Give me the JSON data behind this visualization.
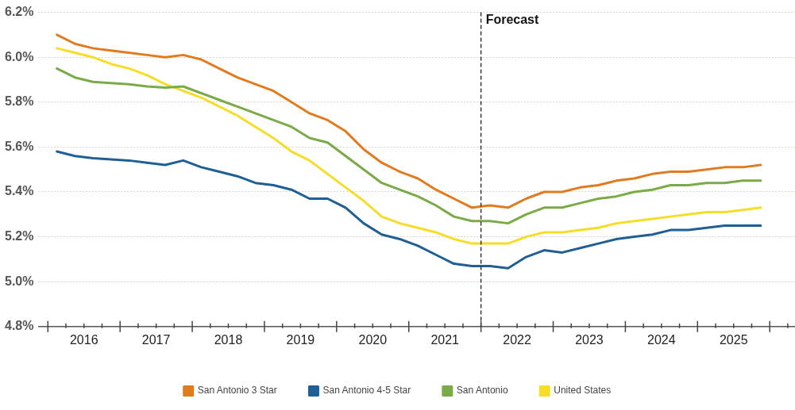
{
  "chart_data": {
    "type": "line",
    "x": [
      2016.125,
      2016.375,
      2016.625,
      2016.875,
      2017.125,
      2017.375,
      2017.625,
      2017.875,
      2018.125,
      2018.375,
      2018.625,
      2018.875,
      2019.125,
      2019.375,
      2019.625,
      2019.875,
      2020.125,
      2020.375,
      2020.625,
      2020.875,
      2021.125,
      2021.375,
      2021.625,
      2021.875,
      2022.125,
      2022.375,
      2022.625,
      2022.875,
      2023.125,
      2023.375,
      2023.625,
      2023.875,
      2024.125,
      2024.375,
      2024.625,
      2024.875,
      2025.125,
      2025.375,
      2025.625,
      2025.875
    ],
    "series": [
      {
        "name": "San Antonio 3 Star",
        "color": "#e07b20",
        "values": [
          6.1,
          6.06,
          6.04,
          6.03,
          6.02,
          6.01,
          6.0,
          6.01,
          5.99,
          5.95,
          5.91,
          5.88,
          5.85,
          5.8,
          5.75,
          5.72,
          5.67,
          5.59,
          5.53,
          5.49,
          5.46,
          5.41,
          5.37,
          5.33,
          5.34,
          5.33,
          5.37,
          5.4,
          5.4,
          5.42,
          5.43,
          5.45,
          5.46,
          5.48,
          5.49,
          5.49,
          5.5,
          5.51,
          5.51,
          5.52
        ]
      },
      {
        "name": "San Antonio 4-5 Star",
        "color": "#1f5f96",
        "values": [
          5.58,
          5.56,
          5.55,
          5.545,
          5.54,
          5.53,
          5.52,
          5.54,
          5.51,
          5.49,
          5.47,
          5.44,
          5.43,
          5.41,
          5.37,
          5.37,
          5.33,
          5.26,
          5.21,
          5.19,
          5.16,
          5.12,
          5.08,
          5.07,
          5.07,
          5.06,
          5.11,
          5.14,
          5.13,
          5.15,
          5.17,
          5.19,
          5.2,
          5.21,
          5.23,
          5.23,
          5.24,
          5.25,
          5.25,
          5.25
        ]
      },
      {
        "name": "San Antonio",
        "color": "#7aab48",
        "values": [
          5.95,
          5.91,
          5.89,
          5.885,
          5.88,
          5.87,
          5.865,
          5.87,
          5.84,
          5.81,
          5.78,
          5.75,
          5.72,
          5.69,
          5.64,
          5.62,
          5.56,
          5.5,
          5.44,
          5.41,
          5.38,
          5.34,
          5.29,
          5.27,
          5.27,
          5.26,
          5.3,
          5.33,
          5.33,
          5.35,
          5.37,
          5.38,
          5.4,
          5.41,
          5.43,
          5.43,
          5.44,
          5.44,
          5.45,
          5.45
        ]
      },
      {
        "name": "United States",
        "color": "#f5dd28",
        "values": [
          6.04,
          6.02,
          6.0,
          5.97,
          5.95,
          5.92,
          5.88,
          5.85,
          5.82,
          5.78,
          5.74,
          5.69,
          5.64,
          5.58,
          5.54,
          5.48,
          5.42,
          5.36,
          5.29,
          5.26,
          5.24,
          5.22,
          5.19,
          5.17,
          5.17,
          5.17,
          5.2,
          5.22,
          5.22,
          5.23,
          5.24,
          5.26,
          5.27,
          5.28,
          5.29,
          5.3,
          5.31,
          5.31,
          5.32,
          5.33
        ]
      }
    ],
    "xlim": [
      2015.87,
      2026.35
    ],
    "xticks": [
      {
        "value": 2016,
        "label": null
      },
      {
        "value": 2016.25,
        "label": null
      },
      {
        "value": 2016.5,
        "label": "2016"
      },
      {
        "value": 2016.75,
        "label": null
      },
      {
        "value": 2017,
        "label": null
      },
      {
        "value": 2017.25,
        "label": null
      },
      {
        "value": 2017.5,
        "label": "2017"
      },
      {
        "value": 2017.75,
        "label": null
      },
      {
        "value": 2018,
        "label": null
      },
      {
        "value": 2018.25,
        "label": null
      },
      {
        "value": 2018.5,
        "label": "2018"
      },
      {
        "value": 2018.75,
        "label": null
      },
      {
        "value": 2019,
        "label": null
      },
      {
        "value": 2019.25,
        "label": null
      },
      {
        "value": 2019.5,
        "label": "2019"
      },
      {
        "value": 2019.75,
        "label": null
      },
      {
        "value": 2020,
        "label": null
      },
      {
        "value": 2020.25,
        "label": null
      },
      {
        "value": 2020.5,
        "label": "2020"
      },
      {
        "value": 2020.75,
        "label": null
      },
      {
        "value": 2021,
        "label": null
      },
      {
        "value": 2021.25,
        "label": null
      },
      {
        "value": 2021.5,
        "label": "2021"
      },
      {
        "value": 2021.75,
        "label": null
      },
      {
        "value": 2022,
        "label": null
      },
      {
        "value": 2022.25,
        "label": null
      },
      {
        "value": 2022.5,
        "label": "2022"
      },
      {
        "value": 2022.75,
        "label": null
      },
      {
        "value": 2023,
        "label": null
      },
      {
        "value": 2023.25,
        "label": null
      },
      {
        "value": 2023.5,
        "label": "2023"
      },
      {
        "value": 2023.75,
        "label": null
      },
      {
        "value": 2024,
        "label": null
      },
      {
        "value": 2024.25,
        "label": null
      },
      {
        "value": 2024.5,
        "label": "2024"
      },
      {
        "value": 2024.75,
        "label": null
      },
      {
        "value": 2025,
        "label": null
      },
      {
        "value": 2025.25,
        "label": null
      },
      {
        "value": 2025.5,
        "label": "2025"
      },
      {
        "value": 2025.75,
        "label": null
      },
      {
        "value": 2026,
        "label": null
      },
      {
        "value": 2026.25,
        "label": null
      }
    ],
    "ylim": [
      4.8,
      6.2
    ],
    "yticks": [
      {
        "value": 4.8,
        "label": "4.8%"
      },
      {
        "value": 5.0,
        "label": "5.0%"
      },
      {
        "value": 5.2,
        "label": "5.2%"
      },
      {
        "value": 5.4,
        "label": "5.4%"
      },
      {
        "value": 5.6,
        "label": "5.6%"
      },
      {
        "value": 5.8,
        "label": "5.8%"
      },
      {
        "value": 6.0,
        "label": "6.0%"
      },
      {
        "value": 6.2,
        "label": "6.2%"
      }
    ],
    "grid": "y",
    "legend": "bottom",
    "marker": "none",
    "ref_lines": [
      {
        "axis": "x",
        "value": 2022,
        "label": "Forecast",
        "color": "#333333",
        "line_style": "dashed"
      }
    ]
  }
}
